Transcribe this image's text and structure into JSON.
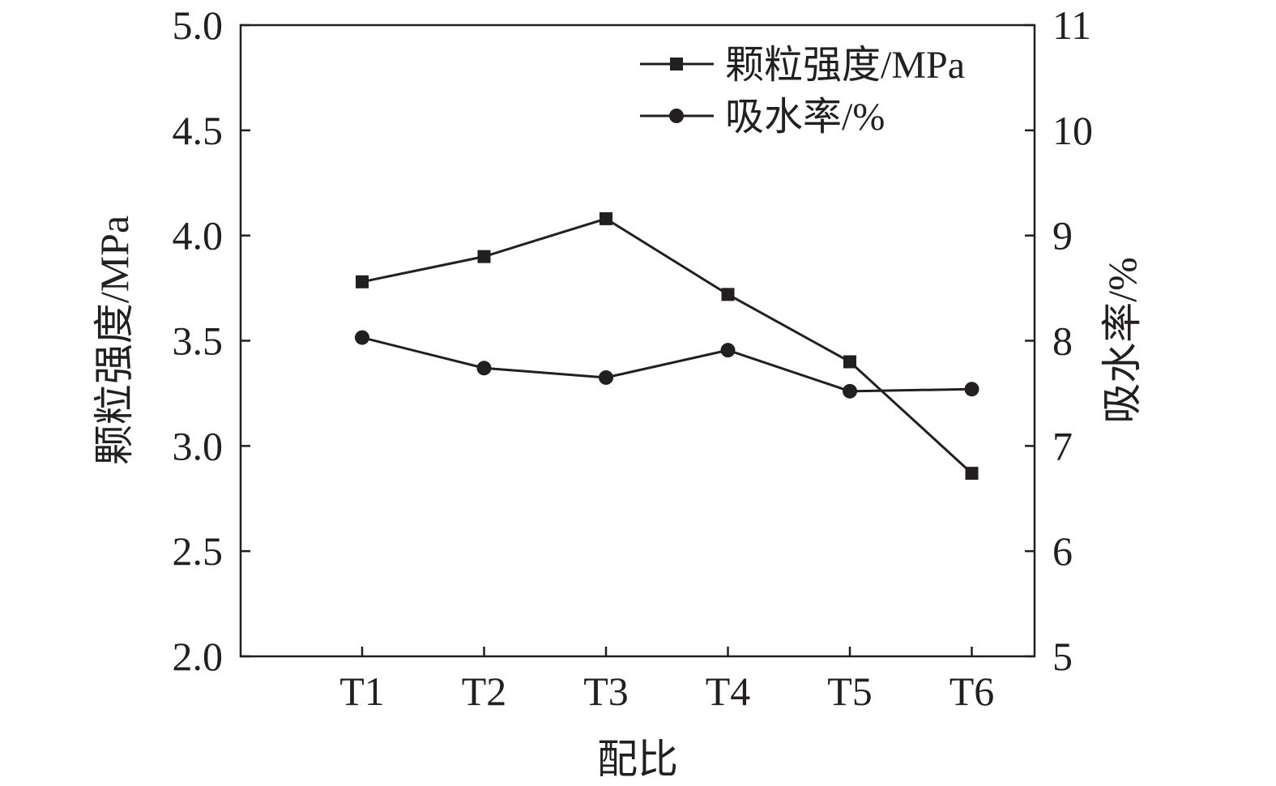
{
  "chart_data": {
    "type": "line",
    "categories": [
      "T1",
      "T2",
      "T3",
      "T4",
      "T5",
      "T6"
    ],
    "xlabel": "配比",
    "ylabel_left": "颗粒强度/MPa",
    "ylabel_right": "吸水率/%",
    "ylim_left": [
      2.0,
      5.0
    ],
    "ylim_right": [
      5,
      11
    ],
    "yticks_left": [
      "2.0",
      "2.5",
      "3.0",
      "3.5",
      "4.0",
      "4.5",
      "5.0"
    ],
    "yticks_right": [
      "5",
      "6",
      "7",
      "8",
      "9",
      "10",
      "11"
    ],
    "legend_position": "top-right",
    "grid": false,
    "series": [
      {
        "name": "颗粒强度/MPa",
        "axis": "left",
        "marker": "square",
        "values": [
          3.78,
          3.9,
          4.08,
          3.72,
          3.4,
          2.87
        ]
      },
      {
        "name": "吸水率/%",
        "axis": "right",
        "marker": "circle",
        "values": [
          8.03,
          7.74,
          7.65,
          7.91,
          7.52,
          7.54
        ]
      }
    ],
    "colors": {
      "axis": "#231f20",
      "series": "#231f20",
      "background": "#ffffff"
    }
  }
}
